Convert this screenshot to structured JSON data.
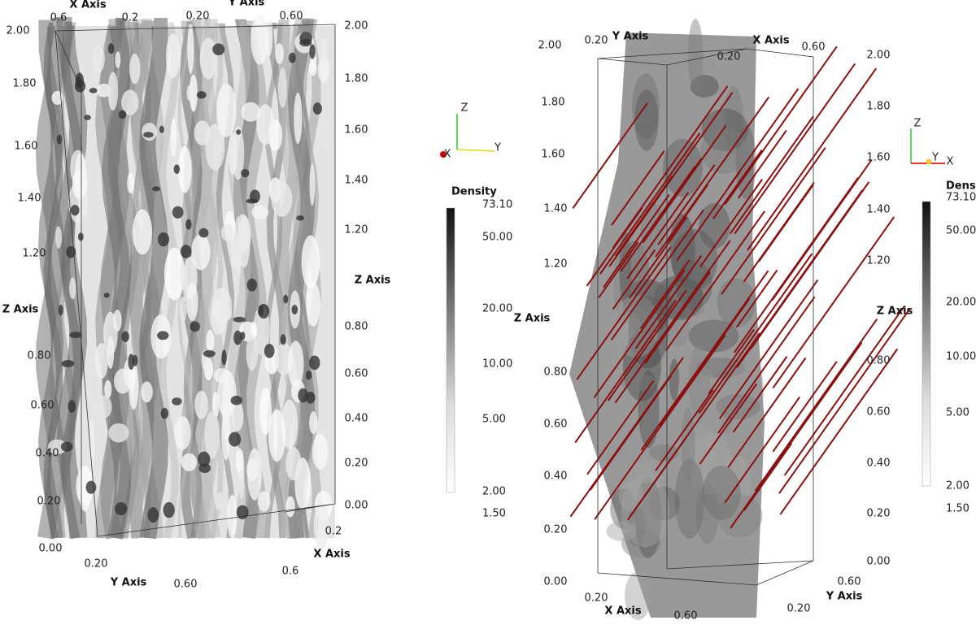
{
  "panels": [
    {
      "top": [
        "X Axis",
        "0.6",
        "0.2",
        "0.20",
        "Y Axis",
        "0.60"
      ],
      "z_left": [
        "2.00",
        "1.80",
        "1.60",
        "1.40",
        "1.20",
        "Z Axis",
        "0.80",
        "0.60",
        "0.40",
        "0.20",
        "0.00"
      ],
      "z_right": [
        "2.00",
        "1.80",
        "1.60",
        "1.40",
        "1.20",
        "Z Axis",
        "0.80",
        "0.60",
        "0.40",
        "0.20",
        "0.00"
      ],
      "bottom": [
        "0.20",
        "Y Axis",
        "0.60",
        "0.2",
        "X Axis",
        "0.6"
      ],
      "colorbar": {
        "title": "Density",
        "ticks": [
          "73.10",
          "50.00",
          "20.00",
          "10.00",
          "5.00",
          "2.00",
          "1.50"
        ]
      },
      "glyph": [
        "Z",
        "Y",
        "X"
      ]
    },
    {
      "top": [
        "0.20",
        "Y Axis",
        "0.20",
        "X Axis",
        "0.60"
      ],
      "z_left": [
        "2.00",
        "1.80",
        "1.60",
        "1.40",
        "1.20",
        "Z Axis",
        "0.80",
        "0.60",
        "0.40",
        "0.20",
        "0.00"
      ],
      "z_right": [
        "2.00",
        "1.80",
        "1.60",
        "1.40",
        "1.20",
        "Z Axis",
        "0.80",
        "0.60",
        "0.40",
        "0.20",
        "0.00"
      ],
      "bottom": [
        "0.20",
        "X Axis",
        "0.60",
        "0.60",
        "Y Axis",
        "0.20"
      ],
      "colorbar": {
        "title": "Density",
        "ticks": [
          "73.10",
          "50.00",
          "20.00",
          "10.00",
          "5.00",
          "2.00",
          "1.50"
        ]
      },
      "glyph": [
        "Z",
        "Y",
        "X"
      ]
    }
  ]
}
